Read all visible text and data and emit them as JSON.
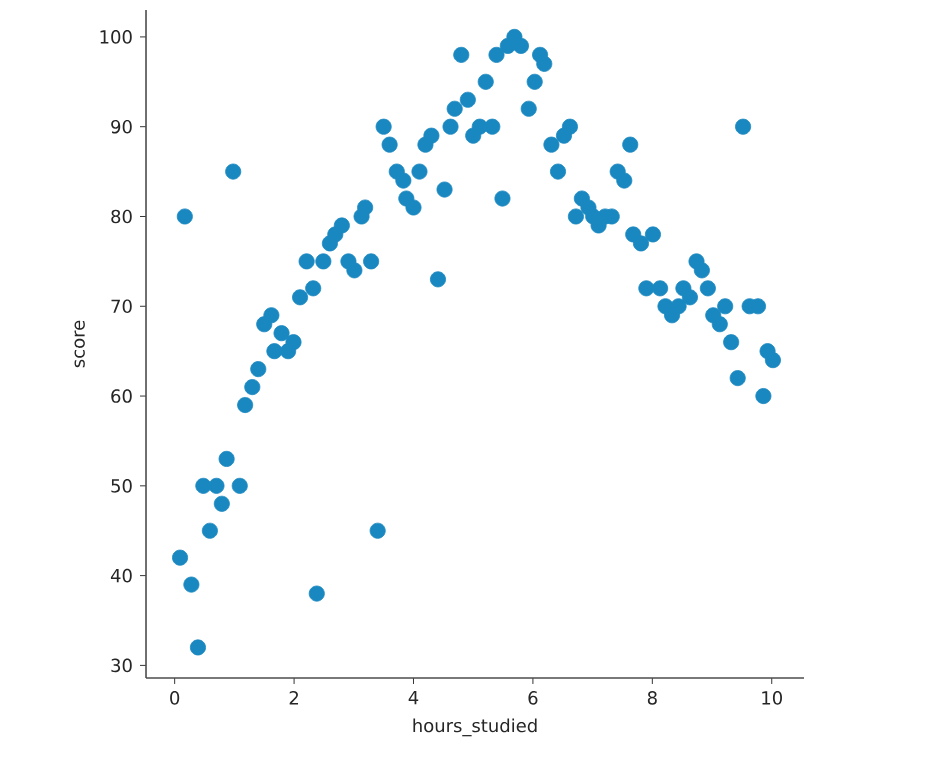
{
  "chart_data": {
    "type": "scatter",
    "xlabel": "hours_studied",
    "ylabel": "score",
    "color": "#1a88c0",
    "marker": "circle",
    "xlim": [
      -0.48,
      10.54
    ],
    "ylim": [
      28.6,
      103
    ],
    "xticks": [
      0,
      2,
      4,
      6,
      8,
      10
    ],
    "yticks": [
      30,
      40,
      50,
      60,
      70,
      80,
      90,
      100
    ],
    "x": [
      0.09,
      0.17,
      0.28,
      0.39,
      0.48,
      0.59,
      0.7,
      0.79,
      0.87,
      0.98,
      1.09,
      1.18,
      1.3,
      1.4,
      1.5,
      1.62,
      1.67,
      1.79,
      1.9,
      1.99,
      2.1,
      2.21,
      2.32,
      2.38,
      2.49,
      2.6,
      2.69,
      2.8,
      2.91,
      3.01,
      3.13,
      3.19,
      3.29,
      3.4,
      3.5,
      3.6,
      3.72,
      3.83,
      3.88,
      4.0,
      4.1,
      4.2,
      4.3,
      4.41,
      4.52,
      4.62,
      4.69,
      4.8,
      4.91,
      5.0,
      5.11,
      5.21,
      5.32,
      5.39,
      5.49,
      5.58,
      5.69,
      5.8,
      5.93,
      6.03,
      6.12,
      6.19,
      6.31,
      6.42,
      6.52,
      6.62,
      6.72,
      6.82,
      6.93,
      7.01,
      7.1,
      7.21,
      7.32,
      7.42,
      7.53,
      7.63,
      7.68,
      7.81,
      7.9,
      8.01,
      8.13,
      8.22,
      8.33,
      8.44,
      8.52,
      8.63,
      8.74,
      8.83,
      8.93,
      9.02,
      9.13,
      9.22,
      9.32,
      9.43,
      9.52,
      9.63,
      9.77,
      9.86,
      9.93,
      10.02
    ],
    "values": [
      42,
      80,
      39,
      32,
      50,
      45,
      50,
      48,
      53,
      85,
      50,
      59,
      61,
      63,
      68,
      69,
      65,
      67,
      65,
      66,
      71,
      75,
      72,
      38,
      75,
      77,
      78,
      79,
      75,
      74,
      80,
      81,
      75,
      45,
      90,
      88,
      85,
      84,
      82,
      81,
      85,
      88,
      89,
      73,
      83,
      90,
      92,
      98,
      93,
      89,
      90,
      95,
      90,
      98,
      82,
      99,
      100,
      99,
      92,
      95,
      98,
      97,
      88,
      85,
      89,
      90,
      80,
      82,
      81,
      80,
      79,
      80,
      80,
      85,
      84,
      88,
      78,
      77,
      72,
      78,
      72,
      70,
      69,
      70,
      72,
      71,
      75,
      74,
      72,
      69,
      68,
      70,
      66,
      62,
      90,
      70,
      70,
      60,
      65,
      64
    ]
  }
}
